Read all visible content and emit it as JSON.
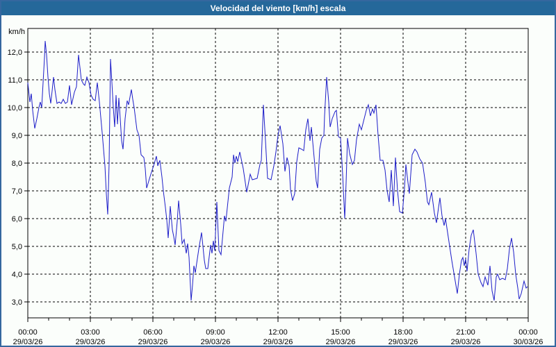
{
  "window": {
    "title": "Velocidad del viento [km/h] escala"
  },
  "colors": {
    "accent_titlebar": "#25689a",
    "outer_border": "#35679f",
    "page_background": "#fbfefb",
    "line_color": "#1c1cc8",
    "grid_color": "#000000",
    "axis_color": "#000000",
    "label_color": "#000000",
    "title_text": "#ffffff"
  },
  "chart_data": {
    "type": "line",
    "title": "Velocidad del viento [km/h] escala",
    "ylabel": "km/h",
    "xlabel": "",
    "grid": "dashed",
    "legend": "none",
    "ylim": [
      2.425,
      12.85
    ],
    "xlim_minutes": [
      0,
      1440
    ],
    "y_ticks": [
      {
        "value": 3,
        "label": "3,0"
      },
      {
        "value": 4,
        "label": "4,0"
      },
      {
        "value": 5,
        "label": "5,0"
      },
      {
        "value": 6,
        "label": "6,0"
      },
      {
        "value": 7,
        "label": "7,0"
      },
      {
        "value": 8,
        "label": "8,0"
      },
      {
        "value": 9,
        "label": "9,0"
      },
      {
        "value": 10,
        "label": "10,0"
      },
      {
        "value": 11,
        "label": "11,0"
      },
      {
        "value": 12,
        "label": "12,0"
      }
    ],
    "x_ticks": [
      {
        "minutes": 0,
        "time": "00:00",
        "date": "29/03/26"
      },
      {
        "minutes": 180,
        "time": "03:00",
        "date": "29/03/26"
      },
      {
        "minutes": 360,
        "time": "06:00",
        "date": "29/03/26"
      },
      {
        "minutes": 540,
        "time": "09:00",
        "date": "29/03/26"
      },
      {
        "minutes": 720,
        "time": "12:00",
        "date": "29/03/26"
      },
      {
        "minutes": 900,
        "time": "15:00",
        "date": "29/03/26"
      },
      {
        "minutes": 1080,
        "time": "18:00",
        "date": "29/03/26"
      },
      {
        "minutes": 1260,
        "time": "21:00",
        "date": "29/03/26"
      },
      {
        "minutes": 1440,
        "time": "00:00",
        "date": "30/03/26"
      }
    ],
    "minor_tick_every_minutes": 60,
    "series": [
      {
        "name": "wind_speed_kmh",
        "points": [
          [
            0,
            10.9
          ],
          [
            6,
            10.2
          ],
          [
            10,
            10.5
          ],
          [
            14,
            9.9
          ],
          [
            20,
            9.25
          ],
          [
            26,
            9.6
          ],
          [
            32,
            10.0
          ],
          [
            36,
            10.2
          ],
          [
            40,
            10.0
          ],
          [
            44,
            10.9
          ],
          [
            48,
            11.8
          ],
          [
            50,
            12.4
          ],
          [
            54,
            11.9
          ],
          [
            58,
            11.1
          ],
          [
            62,
            10.5
          ],
          [
            66,
            10.15
          ],
          [
            70,
            10.6
          ],
          [
            74,
            11.1
          ],
          [
            78,
            10.65
          ],
          [
            84,
            10.15
          ],
          [
            90,
            10.2
          ],
          [
            96,
            10.15
          ],
          [
            102,
            10.3
          ],
          [
            108,
            10.15
          ],
          [
            114,
            10.2
          ],
          [
            120,
            10.8
          ],
          [
            126,
            10.1
          ],
          [
            134,
            10.55
          ],
          [
            140,
            10.75
          ],
          [
            146,
            11.9
          ],
          [
            154,
            11.0
          ],
          [
            160,
            10.85
          ],
          [
            164,
            10.8
          ],
          [
            170,
            11.1
          ],
          [
            176,
            10.9
          ],
          [
            182,
            10.45
          ],
          [
            188,
            10.3
          ],
          [
            194,
            10.25
          ],
          [
            200,
            10.9
          ],
          [
            206,
            10.2
          ],
          [
            214,
            9.1
          ],
          [
            222,
            7.9
          ],
          [
            226,
            6.9
          ],
          [
            230,
            6.15
          ],
          [
            234,
            8.0
          ],
          [
            238,
            11.75
          ],
          [
            242,
            10.9
          ],
          [
            246,
            10.0
          ],
          [
            250,
            9.3
          ],
          [
            254,
            10.45
          ],
          [
            258,
            9.4
          ],
          [
            262,
            10.35
          ],
          [
            266,
            9.6
          ],
          [
            270,
            8.8
          ],
          [
            274,
            8.5
          ],
          [
            280,
            9.6
          ],
          [
            286,
            10.25
          ],
          [
            290,
            10.1
          ],
          [
            298,
            10.65
          ],
          [
            302,
            10.3
          ],
          [
            306,
            10.0
          ],
          [
            314,
            9.2
          ],
          [
            320,
            9.0
          ],
          [
            326,
            8.3
          ],
          [
            334,
            8.2
          ],
          [
            338,
            7.8
          ],
          [
            342,
            7.1
          ],
          [
            348,
            7.35
          ],
          [
            354,
            7.6
          ],
          [
            362,
            7.9
          ],
          [
            370,
            8.25
          ],
          [
            374,
            7.9
          ],
          [
            380,
            8.1
          ],
          [
            386,
            7.5
          ],
          [
            390,
            7.0
          ],
          [
            396,
            6.4
          ],
          [
            400,
            5.95
          ],
          [
            404,
            5.3
          ],
          [
            410,
            6.45
          ],
          [
            416,
            5.6
          ],
          [
            420,
            5.35
          ],
          [
            424,
            5.05
          ],
          [
            430,
            5.9
          ],
          [
            434,
            6.65
          ],
          [
            440,
            5.8
          ],
          [
            444,
            5.1
          ],
          [
            450,
            5.25
          ],
          [
            456,
            4.75
          ],
          [
            460,
            5.1
          ],
          [
            464,
            4.6
          ],
          [
            470,
            3.05
          ],
          [
            474,
            3.6
          ],
          [
            478,
            4.3
          ],
          [
            482,
            4.05
          ],
          [
            492,
            4.9
          ],
          [
            500,
            5.5
          ],
          [
            508,
            4.5
          ],
          [
            512,
            4.2
          ],
          [
            518,
            4.2
          ],
          [
            526,
            5.05
          ],
          [
            530,
            4.75
          ],
          [
            534,
            5.2
          ],
          [
            538,
            4.85
          ],
          [
            544,
            6.6
          ],
          [
            550,
            4.85
          ],
          [
            556,
            4.7
          ],
          [
            566,
            6.1
          ],
          [
            570,
            5.9
          ],
          [
            580,
            7.1
          ],
          [
            588,
            7.5
          ],
          [
            592,
            8.3
          ],
          [
            596,
            8.0
          ],
          [
            600,
            8.25
          ],
          [
            604,
            8.05
          ],
          [
            610,
            8.4
          ],
          [
            620,
            7.8
          ],
          [
            630,
            6.95
          ],
          [
            640,
            7.6
          ],
          [
            646,
            7.4
          ],
          [
            660,
            7.45
          ],
          [
            668,
            7.95
          ],
          [
            672,
            8.1
          ],
          [
            678,
            10.1
          ],
          [
            684,
            8.8
          ],
          [
            690,
            7.45
          ],
          [
            700,
            7.4
          ],
          [
            708,
            7.9
          ],
          [
            714,
            8.4
          ],
          [
            720,
            9.0
          ],
          [
            726,
            9.35
          ],
          [
            734,
            8.7
          ],
          [
            740,
            7.7
          ],
          [
            746,
            8.2
          ],
          [
            752,
            7.9
          ],
          [
            756,
            7.05
          ],
          [
            762,
            6.65
          ],
          [
            768,
            6.9
          ],
          [
            774,
            8.05
          ],
          [
            780,
            8.55
          ],
          [
            788,
            8.5
          ],
          [
            794,
            8.45
          ],
          [
            800,
            9.2
          ],
          [
            806,
            9.6
          ],
          [
            812,
            8.8
          ],
          [
            816,
            9.3
          ],
          [
            824,
            8.2
          ],
          [
            830,
            7.35
          ],
          [
            834,
            7.1
          ],
          [
            840,
            8.5
          ],
          [
            846,
            8.9
          ],
          [
            852,
            9.0
          ],
          [
            854,
            9.7
          ],
          [
            860,
            11.1
          ],
          [
            866,
            10.2
          ],
          [
            870,
            9.3
          ],
          [
            876,
            9.6
          ],
          [
            884,
            9.85
          ],
          [
            888,
            9.9
          ],
          [
            894,
            8.95
          ],
          [
            900,
            8.9
          ],
          [
            906,
            7.6
          ],
          [
            912,
            6.0
          ],
          [
            916,
            7.3
          ],
          [
            920,
            8.9
          ],
          [
            926,
            8.35
          ],
          [
            934,
            7.95
          ],
          [
            940,
            8.1
          ],
          [
            946,
            8.85
          ],
          [
            954,
            9.4
          ],
          [
            960,
            9.2
          ],
          [
            968,
            9.6
          ],
          [
            974,
            9.9
          ],
          [
            980,
            10.1
          ],
          [
            986,
            9.7
          ],
          [
            992,
            9.95
          ],
          [
            996,
            9.8
          ],
          [
            1002,
            10.1
          ],
          [
            1008,
            9.0
          ],
          [
            1014,
            8.1
          ],
          [
            1022,
            8.1
          ],
          [
            1028,
            7.75
          ],
          [
            1034,
            7.0
          ],
          [
            1040,
            6.6
          ],
          [
            1046,
            7.75
          ],
          [
            1052,
            6.45
          ],
          [
            1058,
            8.2
          ],
          [
            1064,
            7.0
          ],
          [
            1070,
            6.25
          ],
          [
            1078,
            6.2
          ],
          [
            1084,
            7.1
          ],
          [
            1088,
            7.95
          ],
          [
            1094,
            7.3
          ],
          [
            1098,
            6.9
          ],
          [
            1106,
            8.3
          ],
          [
            1114,
            8.5
          ],
          [
            1120,
            8.4
          ],
          [
            1128,
            8.15
          ],
          [
            1136,
            8.0
          ],
          [
            1144,
            7.3
          ],
          [
            1150,
            6.6
          ],
          [
            1154,
            6.5
          ],
          [
            1162,
            6.95
          ],
          [
            1170,
            6.2
          ],
          [
            1176,
            5.85
          ],
          [
            1182,
            6.4
          ],
          [
            1186,
            6.75
          ],
          [
            1192,
            6.1
          ],
          [
            1198,
            5.75
          ],
          [
            1202,
            6.0
          ],
          [
            1208,
            5.5
          ],
          [
            1214,
            5.0
          ],
          [
            1220,
            4.5
          ],
          [
            1228,
            3.9
          ],
          [
            1236,
            3.3
          ],
          [
            1242,
            4.0
          ],
          [
            1248,
            4.5
          ],
          [
            1252,
            4.6
          ],
          [
            1256,
            4.3
          ],
          [
            1260,
            4.55
          ],
          [
            1264,
            4.1
          ],
          [
            1270,
            4.9
          ],
          [
            1276,
            5.4
          ],
          [
            1282,
            5.6
          ],
          [
            1290,
            4.75
          ],
          [
            1296,
            4.0
          ],
          [
            1304,
            3.7
          ],
          [
            1310,
            3.55
          ],
          [
            1316,
            3.9
          ],
          [
            1324,
            3.6
          ],
          [
            1330,
            4.3
          ],
          [
            1336,
            3.4
          ],
          [
            1342,
            3.05
          ],
          [
            1348,
            3.9
          ],
          [
            1352,
            4.0
          ],
          [
            1358,
            3.8
          ],
          [
            1366,
            3.85
          ],
          [
            1374,
            3.8
          ],
          [
            1380,
            4.2
          ],
          [
            1386,
            4.9
          ],
          [
            1392,
            5.3
          ],
          [
            1398,
            4.8
          ],
          [
            1404,
            4.0
          ],
          [
            1410,
            3.5
          ],
          [
            1414,
            3.1
          ],
          [
            1420,
            3.3
          ],
          [
            1428,
            3.75
          ],
          [
            1434,
            3.5
          ],
          [
            1438,
            3.55
          ]
        ]
      }
    ]
  }
}
